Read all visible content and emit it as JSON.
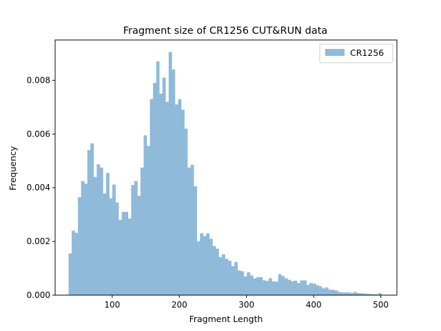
{
  "chart_data": {
    "type": "bar",
    "title": "Fragment size of CR1256 CUT&RUN data",
    "xlabel": "Fragment Length",
    "ylabel": "Frequency",
    "xlim": [
      15,
      524
    ],
    "ylim": [
      0,
      0.0095
    ],
    "x_ticks": [
      100,
      200,
      300,
      400,
      500
    ],
    "y_ticks": [
      0.0,
      0.002,
      0.004,
      0.006,
      0.008
    ],
    "y_tick_labels": [
      "0.000",
      "0.002",
      "0.004",
      "0.006",
      "0.008"
    ],
    "legend": {
      "location": "top-right",
      "entries": [
        "CR1256"
      ]
    },
    "grid": false,
    "bar_color": "#8fbad9",
    "bins": {
      "start": 35,
      "end": 501,
      "count": 100
    },
    "series": [
      {
        "name": "CR1256",
        "values": [
          0.00155,
          0.0024,
          0.00232,
          0.00365,
          0.00425,
          0.00415,
          0.0054,
          0.00565,
          0.0044,
          0.00487,
          0.00475,
          0.00378,
          0.00455,
          0.0036,
          0.00412,
          0.00345,
          0.0028,
          0.0031,
          0.0031,
          0.00285,
          0.0041,
          0.00425,
          0.0037,
          0.00475,
          0.00595,
          0.00555,
          0.0073,
          0.0079,
          0.0087,
          0.0075,
          0.0081,
          0.0072,
          0.00905,
          0.0084,
          0.0071,
          0.0073,
          0.0069,
          0.0062,
          0.00475,
          0.00485,
          0.00405,
          0.002,
          0.0023,
          0.0022,
          0.0023,
          0.0021,
          0.00183,
          0.00173,
          0.00142,
          0.00152,
          0.00135,
          0.00128,
          0.00108,
          0.00123,
          0.00092,
          0.00089,
          0.0007,
          0.00085,
          0.00073,
          0.00062,
          0.00067,
          0.00067,
          0.00055,
          0.00053,
          0.00063,
          0.00051,
          0.0005,
          0.00078,
          0.00071,
          0.00063,
          0.00057,
          0.00052,
          0.00054,
          0.00045,
          0.00055,
          0.00055,
          0.00038,
          0.00045,
          0.00043,
          0.00037,
          0.00033,
          0.00025,
          0.00029,
          0.0002,
          0.0002,
          0.00017,
          0.00012,
          0.0001,
          0.0001,
          0.0001,
          8e-05,
          0.00012,
          8e-05,
          7e-05,
          6e-05,
          5e-05,
          4e-05,
          3e-05,
          3e-05,
          7e-05
        ]
      }
    ]
  }
}
